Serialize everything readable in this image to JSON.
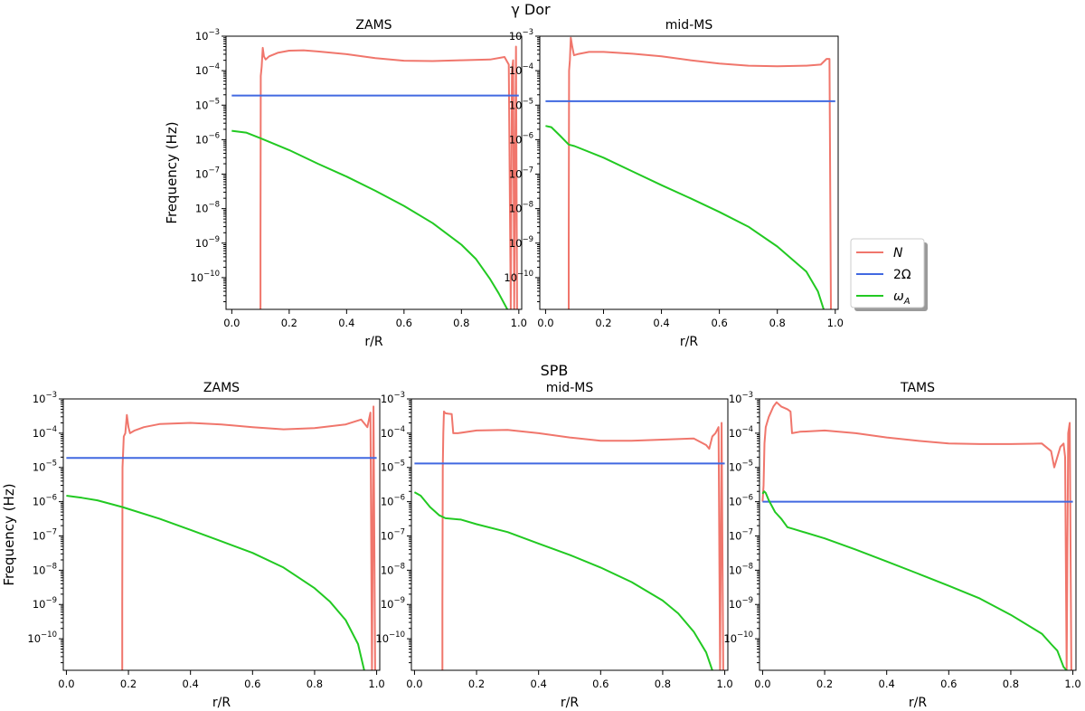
{
  "figure": {
    "group_titles": {
      "gdor": "γ Dor",
      "spb": "SPB"
    },
    "legend": [
      {
        "key": "N",
        "label": "N",
        "color": "#f0766c"
      },
      {
        "key": "omega",
        "label": "2Ω",
        "color": "#4169e1"
      },
      {
        "key": "omegaA",
        "label": "ωA",
        "color": "#22c922"
      }
    ],
    "xlabel": "r/R",
    "ylabel": "Frequency (Hz)",
    "x_ticks": [
      "0.0",
      "0.2",
      "0.4",
      "0.6",
      "0.8",
      "1.0"
    ],
    "y_ticks": [
      {
        "base": "10",
        "exp": "−3"
      },
      {
        "base": "10",
        "exp": "−4"
      },
      {
        "base": "10",
        "exp": "−5"
      },
      {
        "base": "10",
        "exp": "−6"
      },
      {
        "base": "10",
        "exp": "−7"
      },
      {
        "base": "10",
        "exp": "−8"
      },
      {
        "base": "10",
        "exp": "−9"
      },
      {
        "base": "10",
        "exp": "−10"
      }
    ]
  },
  "chart_data": [
    {
      "type": "line",
      "group": "γ Dor",
      "title": "ZAMS",
      "xlabel": "r/R",
      "ylabel": "Frequency (Hz)",
      "yscale": "log",
      "xlim": [
        -0.02,
        1.01
      ],
      "ylim": [
        1.2e-11,
        0.001
      ],
      "series": [
        {
          "name": "N",
          "color": "#f0766c",
          "points": [
            [
              0.0999,
              1.2e-11
            ],
            [
              0.1,
              1e-09
            ],
            [
              0.101,
              7e-05
            ],
            [
              0.104,
              0.00013
            ],
            [
              0.108,
              0.00046
            ],
            [
              0.112,
              0.00026
            ],
            [
              0.118,
              0.00021
            ],
            [
              0.13,
              0.00026
            ],
            [
              0.16,
              0.00033
            ],
            [
              0.2,
              0.00038
            ],
            [
              0.25,
              0.00039
            ],
            [
              0.3,
              0.00036
            ],
            [
              0.4,
              0.0003
            ],
            [
              0.5,
              0.00023
            ],
            [
              0.6,
              0.000195
            ],
            [
              0.7,
              0.00019
            ],
            [
              0.8,
              0.0002
            ],
            [
              0.9,
              0.00021
            ],
            [
              0.95,
              0.00025
            ],
            [
              0.965,
              0.00015
            ],
            [
              0.972,
              1.2e-11
            ],
            [
              0.976,
              0.0001
            ],
            [
              0.98,
              0.0002
            ],
            [
              0.984,
              1.2e-11
            ],
            [
              0.99,
              0.0005
            ],
            [
              0.994,
              1.2e-11
            ]
          ]
        },
        {
          "name": "2Ω",
          "color": "#4169e1",
          "points": [
            [
              0.0,
              1.9e-05
            ],
            [
              1.0,
              1.9e-05
            ]
          ]
        },
        {
          "name": "ωA",
          "color": "#22c922",
          "points": [
            [
              0.0,
              1.8e-06
            ],
            [
              0.05,
              1.6e-06
            ],
            [
              0.1,
              1.1e-06
            ],
            [
              0.2,
              5e-07
            ],
            [
              0.3,
              2e-07
            ],
            [
              0.4,
              8.5e-08
            ],
            [
              0.5,
              3.3e-08
            ],
            [
              0.6,
              1.2e-08
            ],
            [
              0.7,
              3.8e-09
            ],
            [
              0.8,
              9e-10
            ],
            [
              0.85,
              3.5e-10
            ],
            [
              0.9,
              9e-11
            ],
            [
              0.93,
              3.5e-11
            ],
            [
              0.96,
              1.2e-11
            ]
          ]
        }
      ]
    },
    {
      "type": "line",
      "group": "γ Dor",
      "title": "mid-MS",
      "xlabel": "r/R",
      "ylabel": "",
      "yscale": "log",
      "xlim": [
        -0.02,
        1.01
      ],
      "ylim": [
        1.2e-11,
        0.001
      ],
      "series": [
        {
          "name": "N",
          "color": "#f0766c",
          "points": [
            [
              0.0799,
              1.2e-11
            ],
            [
              0.08,
              1e-09
            ],
            [
              0.081,
              0.0001
            ],
            [
              0.084,
              0.0002
            ],
            [
              0.087,
              0.0009
            ],
            [
              0.092,
              0.0005
            ],
            [
              0.098,
              0.00028
            ],
            [
              0.11,
              0.0003
            ],
            [
              0.15,
              0.00035
            ],
            [
              0.2,
              0.00035
            ],
            [
              0.3,
              0.00031
            ],
            [
              0.4,
              0.00026
            ],
            [
              0.5,
              0.0002
            ],
            [
              0.6,
              0.00016
            ],
            [
              0.7,
              0.00014
            ],
            [
              0.8,
              0.000135
            ],
            [
              0.9,
              0.00014
            ],
            [
              0.95,
              0.00015
            ],
            [
              0.97,
              0.00022
            ],
            [
              0.98,
              0.00022
            ],
            [
              0.985,
              1.2e-11
            ]
          ]
        },
        {
          "name": "2Ω",
          "color": "#4169e1",
          "points": [
            [
              0.0,
              1.3e-05
            ],
            [
              1.0,
              1.3e-05
            ]
          ]
        },
        {
          "name": "ωA",
          "color": "#22c922",
          "points": [
            [
              0.0,
              2.5e-06
            ],
            [
              0.02,
              2.3e-06
            ],
            [
              0.05,
              1.3e-06
            ],
            [
              0.08,
              7.2e-07
            ],
            [
              0.1,
              6.5e-07
            ],
            [
              0.2,
              3e-07
            ],
            [
              0.3,
              1.2e-07
            ],
            [
              0.4,
              4.8e-08
            ],
            [
              0.5,
              2e-08
            ],
            [
              0.6,
              8e-09
            ],
            [
              0.7,
              3e-09
            ],
            [
              0.8,
              8e-10
            ],
            [
              0.9,
              1.5e-10
            ],
            [
              0.94,
              4e-11
            ],
            [
              0.96,
              1.2e-11
            ]
          ]
        }
      ]
    },
    {
      "type": "line",
      "group": "SPB",
      "title": "ZAMS",
      "xlabel": "r/R",
      "ylabel": "Frequency (Hz)",
      "yscale": "log",
      "xlim": [
        -0.01,
        1.01
      ],
      "ylim": [
        1.2e-11,
        0.001
      ],
      "series": [
        {
          "name": "N",
          "color": "#f0766c",
          "points": [
            [
              0.1799,
              1.2e-11
            ],
            [
              0.18,
              1e-09
            ],
            [
              0.181,
              1e-05
            ],
            [
              0.185,
              8e-05
            ],
            [
              0.19,
              0.0001
            ],
            [
              0.195,
              0.00034
            ],
            [
              0.2,
              0.00015
            ],
            [
              0.205,
              0.0001
            ],
            [
              0.22,
              0.00012
            ],
            [
              0.25,
              0.00015
            ],
            [
              0.3,
              0.000185
            ],
            [
              0.4,
              0.0002
            ],
            [
              0.5,
              0.00018
            ],
            [
              0.6,
              0.00015
            ],
            [
              0.7,
              0.00013
            ],
            [
              0.8,
              0.00014
            ],
            [
              0.9,
              0.00018
            ],
            [
              0.95,
              0.00025
            ],
            [
              0.97,
              0.00015
            ],
            [
              0.98,
              0.0004
            ],
            [
              0.985,
              1.2e-11
            ],
            [
              0.99,
              0.0006
            ],
            [
              0.995,
              1.2e-11
            ]
          ]
        },
        {
          "name": "2Ω",
          "color": "#4169e1",
          "points": [
            [
              0.0,
              1.9e-05
            ],
            [
              1.0,
              1.9e-05
            ]
          ]
        },
        {
          "name": "ωA",
          "color": "#22c922",
          "points": [
            [
              0.0,
              1.5e-06
            ],
            [
              0.05,
              1.3e-06
            ],
            [
              0.1,
              1.1e-06
            ],
            [
              0.18,
              7e-07
            ],
            [
              0.3,
              3.2e-07
            ],
            [
              0.4,
              1.5e-07
            ],
            [
              0.5,
              7e-08
            ],
            [
              0.6,
              3.2e-08
            ],
            [
              0.7,
              1.2e-08
            ],
            [
              0.8,
              3e-09
            ],
            [
              0.85,
              1.2e-09
            ],
            [
              0.9,
              3.5e-10
            ],
            [
              0.94,
              7e-11
            ],
            [
              0.96,
              1.2e-11
            ]
          ]
        }
      ]
    },
    {
      "type": "line",
      "group": "SPB",
      "title": "mid-MS",
      "xlabel": "r/R",
      "ylabel": "",
      "yscale": "log",
      "xlim": [
        -0.01,
        1.01
      ],
      "ylim": [
        1.2e-11,
        0.001
      ],
      "series": [
        {
          "name": "N",
          "color": "#f0766c",
          "points": [
            [
              0.0899,
              1.2e-11
            ],
            [
              0.09,
              1e-09
            ],
            [
              0.091,
              1e-05
            ],
            [
              0.093,
              0.0001
            ],
            [
              0.095,
              0.00043
            ],
            [
              0.1,
              0.00038
            ],
            [
              0.11,
              0.00037
            ],
            [
              0.12,
              0.00036
            ],
            [
              0.125,
              0.0001
            ],
            [
              0.14,
              0.0001
            ],
            [
              0.2,
              0.00012
            ],
            [
              0.3,
              0.000125
            ],
            [
              0.4,
              0.0001
            ],
            [
              0.5,
              7.5e-05
            ],
            [
              0.6,
              6e-05
            ],
            [
              0.7,
              6e-05
            ],
            [
              0.8,
              6.5e-05
            ],
            [
              0.9,
              7e-05
            ],
            [
              0.94,
              4.5e-05
            ],
            [
              0.95,
              3.5e-05
            ],
            [
              0.96,
              8e-05
            ],
            [
              0.97,
              0.0001
            ],
            [
              0.98,
              0.00015
            ],
            [
              0.985,
              1.2e-11
            ],
            [
              0.99,
              0.0002
            ],
            [
              0.995,
              1.2e-11
            ]
          ]
        },
        {
          "name": "2Ω",
          "color": "#4169e1",
          "points": [
            [
              0.0,
              1.3e-05
            ],
            [
              1.0,
              1.3e-05
            ]
          ]
        },
        {
          "name": "ωA",
          "color": "#22c922",
          "points": [
            [
              0.0,
              1.9e-06
            ],
            [
              0.02,
              1.5e-06
            ],
            [
              0.05,
              7e-07
            ],
            [
              0.08,
              4e-07
            ],
            [
              0.1,
              3.3e-07
            ],
            [
              0.15,
              3e-07
            ],
            [
              0.2,
              2.2e-07
            ],
            [
              0.3,
              1.3e-07
            ],
            [
              0.4,
              6e-08
            ],
            [
              0.5,
              2.8e-08
            ],
            [
              0.6,
              1.2e-08
            ],
            [
              0.7,
              4.5e-09
            ],
            [
              0.8,
              1.3e-09
            ],
            [
              0.85,
              5.5e-10
            ],
            [
              0.9,
              1.6e-10
            ],
            [
              0.94,
              4e-11
            ],
            [
              0.96,
              1.2e-11
            ]
          ]
        }
      ]
    },
    {
      "type": "line",
      "group": "SPB",
      "title": "TAMS",
      "xlabel": "r/R",
      "ylabel": "",
      "yscale": "log",
      "xlim": [
        -0.01,
        1.01
      ],
      "ylim": [
        1.2e-11,
        0.001
      ],
      "series": [
        {
          "name": "N",
          "color": "#f0766c",
          "points": [
            [
              0.0,
              1e-06
            ],
            [
              0.003,
              3e-06
            ],
            [
              0.006,
              5e-05
            ],
            [
              0.01,
              0.00015
            ],
            [
              0.02,
              0.0003
            ],
            [
              0.035,
              0.0006
            ],
            [
              0.045,
              0.0008
            ],
            [
              0.06,
              0.0006
            ],
            [
              0.08,
              0.0005
            ],
            [
              0.09,
              0.00043
            ],
            [
              0.095,
              0.0001
            ],
            [
              0.12,
              0.00011
            ],
            [
              0.2,
              0.00012
            ],
            [
              0.3,
              0.0001
            ],
            [
              0.4,
              7.5e-05
            ],
            [
              0.5,
              6e-05
            ],
            [
              0.6,
              5e-05
            ],
            [
              0.7,
              4.8e-05
            ],
            [
              0.8,
              4.8e-05
            ],
            [
              0.9,
              5e-05
            ],
            [
              0.93,
              3e-05
            ],
            [
              0.94,
              1e-05
            ],
            [
              0.95,
              2e-05
            ],
            [
              0.96,
              4e-05
            ],
            [
              0.97,
              5e-05
            ],
            [
              0.975,
              2e-05
            ],
            [
              0.98,
              1.2e-11
            ],
            [
              0.985,
              0.0001
            ],
            [
              0.99,
              0.0002
            ],
            [
              0.995,
              1.2e-11
            ]
          ]
        },
        {
          "name": "2Ω",
          "color": "#4169e1",
          "points": [
            [
              0.0,
              1e-06
            ],
            [
              1.0,
              1e-06
            ]
          ]
        },
        {
          "name": "ωA",
          "color": "#22c922",
          "points": [
            [
              0.0,
              1.7e-06
            ],
            [
              0.005,
              2e-06
            ],
            [
              0.01,
              1.8e-06
            ],
            [
              0.02,
              1.1e-06
            ],
            [
              0.04,
              5e-07
            ],
            [
              0.06,
              3.2e-07
            ],
            [
              0.08,
              1.8e-07
            ],
            [
              0.1,
              1.6e-07
            ],
            [
              0.2,
              8.5e-08
            ],
            [
              0.3,
              4e-08
            ],
            [
              0.4,
              1.8e-08
            ],
            [
              0.5,
              8e-09
            ],
            [
              0.6,
              3.5e-09
            ],
            [
              0.7,
              1.5e-09
            ],
            [
              0.8,
              5e-10
            ],
            [
              0.9,
              1.4e-10
            ],
            [
              0.93,
              7e-11
            ],
            [
              0.95,
              4.5e-11
            ],
            [
              0.97,
              1.5e-11
            ],
            [
              0.98,
              1.2e-11
            ]
          ]
        }
      ]
    }
  ]
}
